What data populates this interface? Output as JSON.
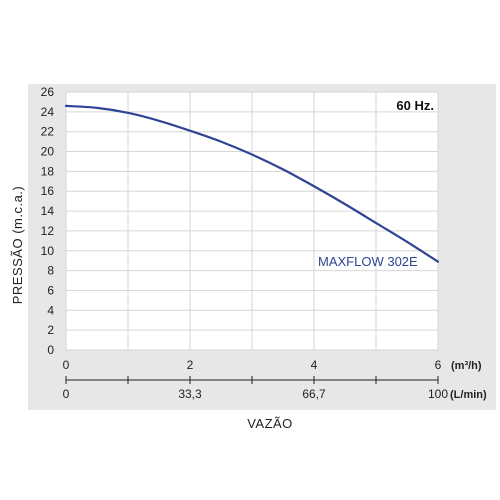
{
  "chart_data": {
    "type": "line",
    "title": "",
    "annotation": "60 Hz.",
    "ylabel": "PRESSÃO (m.c.a.)",
    "xlabel": "VAZÃO",
    "ylim": [
      0,
      26
    ],
    "yticks": [
      "0",
      "2",
      "4",
      "6",
      "8",
      "10",
      "12",
      "14",
      "16",
      "18",
      "20",
      "22",
      "24",
      "26"
    ],
    "xlim": [
      0,
      6
    ],
    "x_unit_primary": "(m³/h)",
    "x_unit_secondary": "(L/min)",
    "xticks_primary": [
      {
        "value": 0,
        "label": "0"
      },
      {
        "value": 2,
        "label": "2"
      },
      {
        "value": 4,
        "label": "4"
      },
      {
        "value": 6,
        "label": "6"
      }
    ],
    "xticks_secondary": [
      {
        "value": 0,
        "label": "0"
      },
      {
        "value": 2,
        "label": "33,3"
      },
      {
        "value": 4,
        "label": "66,7"
      },
      {
        "value": 6,
        "label": "100"
      }
    ],
    "grid": true,
    "series": [
      {
        "name": "MAXFLOW 302E",
        "color": "#2f4494",
        "x": [
          0,
          0.5,
          1,
          1.5,
          2,
          2.5,
          3,
          3.5,
          4,
          4.5,
          5,
          5.5,
          6
        ],
        "y": [
          24.6,
          24.4,
          23.9,
          23.1,
          22.1,
          21.0,
          19.7,
          18.2,
          16.5,
          14.7,
          12.8,
          10.9,
          8.9
        ]
      }
    ]
  }
}
